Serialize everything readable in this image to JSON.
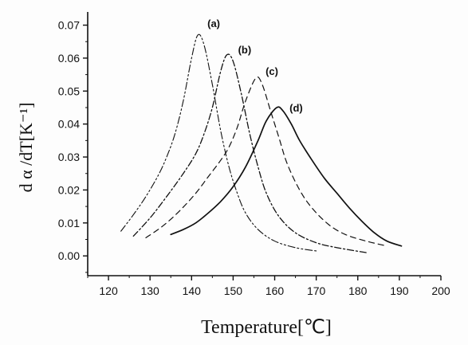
{
  "chart_data": {
    "type": "line",
    "xlabel": "Temperature[℃]",
    "ylabel": "d α /dT[K⁻¹]",
    "xlim": [
      115,
      200
    ],
    "ylim": [
      -0.006,
      0.074
    ],
    "xticks": [
      120,
      130,
      140,
      150,
      160,
      170,
      180,
      190,
      200
    ],
    "yticks": [
      0.0,
      0.01,
      0.02,
      0.03,
      0.04,
      0.05,
      0.06,
      0.07
    ],
    "ytick_labels": [
      "0.00",
      "0.01",
      "0.02",
      "0.03",
      "0.04",
      "0.05",
      "0.06",
      "0.07"
    ],
    "grid": false,
    "series": [
      {
        "name": "(a)",
        "style": "dash-dot-dot",
        "peak": [
          141.5,
          0.067
        ],
        "points": [
          [
            123,
            0.0075
          ],
          [
            126,
            0.0125
          ],
          [
            129,
            0.018
          ],
          [
            132,
            0.0245
          ],
          [
            134,
            0.03
          ],
          [
            136,
            0.037
          ],
          [
            138,
            0.047
          ],
          [
            140,
            0.06
          ],
          [
            141.5,
            0.067
          ],
          [
            143,
            0.064
          ],
          [
            145,
            0.052
          ],
          [
            147,
            0.038
          ],
          [
            149,
            0.027
          ],
          [
            151,
            0.019
          ],
          [
            153,
            0.013
          ],
          [
            156,
            0.008
          ],
          [
            160,
            0.0045
          ],
          [
            165,
            0.0025
          ],
          [
            170,
            0.0015
          ]
        ]
      },
      {
        "name": "(b)",
        "style": "dash-dot",
        "peak": [
          148.5,
          0.061
        ],
        "points": [
          [
            126,
            0.006
          ],
          [
            130,
            0.0115
          ],
          [
            134,
            0.018
          ],
          [
            138,
            0.025
          ],
          [
            141,
            0.031
          ],
          [
            143,
            0.037
          ],
          [
            145,
            0.045
          ],
          [
            147,
            0.056
          ],
          [
            148.5,
            0.061
          ],
          [
            150,
            0.059
          ],
          [
            152,
            0.049
          ],
          [
            154,
            0.037
          ],
          [
            156,
            0.027
          ],
          [
            158,
            0.019
          ],
          [
            161,
            0.012
          ],
          [
            165,
            0.007
          ],
          [
            170,
            0.004
          ],
          [
            175,
            0.0025
          ],
          [
            182,
            0.001
          ]
        ]
      },
      {
        "name": "(c)",
        "style": "dashed",
        "peak": [
          155.5,
          0.054
        ],
        "points": [
          [
            129,
            0.0055
          ],
          [
            133,
            0.009
          ],
          [
            137,
            0.0135
          ],
          [
            141,
            0.019
          ],
          [
            144,
            0.024
          ],
          [
            147,
            0.029
          ],
          [
            149,
            0.033
          ],
          [
            151,
            0.039
          ],
          [
            153,
            0.047
          ],
          [
            155.5,
            0.054
          ],
          [
            157,
            0.052
          ],
          [
            159,
            0.044
          ],
          [
            161,
            0.036
          ],
          [
            163,
            0.028
          ],
          [
            166,
            0.02
          ],
          [
            169,
            0.0145
          ],
          [
            173,
            0.0095
          ],
          [
            177,
            0.0065
          ],
          [
            182,
            0.0045
          ],
          [
            187,
            0.003
          ]
        ]
      },
      {
        "name": "(d)",
        "style": "solid",
        "peak": [
          160.5,
          0.045
        ],
        "points": [
          [
            135,
            0.0065
          ],
          [
            138,
            0.008
          ],
          [
            141,
            0.01
          ],
          [
            144,
            0.013
          ],
          [
            147,
            0.0165
          ],
          [
            150,
            0.021
          ],
          [
            153,
            0.027
          ],
          [
            156,
            0.035
          ],
          [
            158,
            0.041
          ],
          [
            160.5,
            0.045
          ],
          [
            162,
            0.044
          ],
          [
            164,
            0.04
          ],
          [
            166,
            0.035
          ],
          [
            169,
            0.029
          ],
          [
            172,
            0.0235
          ],
          [
            175,
            0.019
          ],
          [
            178,
            0.0145
          ],
          [
            181,
            0.0105
          ],
          [
            184,
            0.007
          ],
          [
            187,
            0.0045
          ],
          [
            190.5,
            0.003
          ]
        ]
      }
    ]
  }
}
